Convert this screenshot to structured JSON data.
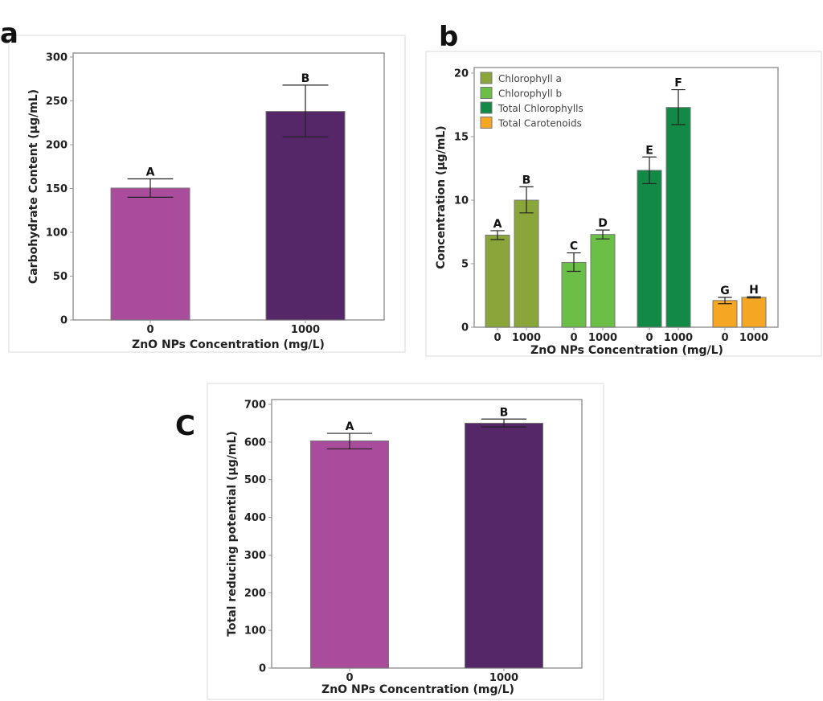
{
  "chart_data": [
    {
      "panel": "a",
      "type": "bar",
      "title": "",
      "xlabel": "ZnO NPs Concentration (mg/L)",
      "ylabel": "Carbohydrate Content (µg/mL)",
      "categories": [
        "0",
        "1000"
      ],
      "values": [
        150.5,
        238
      ],
      "error_low": [
        140,
        209
      ],
      "error_high": [
        161,
        268
      ],
      "significance_labels": [
        "A",
        "B"
      ],
      "bar_colors": [
        "#a94c9b",
        "#552668"
      ],
      "ylim": [
        0,
        300
      ],
      "yticks": [
        0,
        50,
        100,
        150,
        200,
        250,
        300
      ],
      "grid": false,
      "legend": null
    },
    {
      "panel": "b",
      "type": "bar",
      "title": "",
      "xlabel": "ZnO NPs Concentration (mg/L)",
      "ylabel": "Concentration (µg/mL)",
      "categories": [
        "0",
        "1000"
      ],
      "series": [
        {
          "name": "Chlorophyll a",
          "color": "#8aa63b",
          "values": [
            7.25,
            10.0
          ],
          "error_low": [
            6.9,
            9.0
          ],
          "error_high": [
            7.6,
            11.05
          ],
          "significance_labels": [
            "A",
            "B"
          ]
        },
        {
          "name": "Chlorophyll b",
          "color": "#6cbf46",
          "values": [
            5.1,
            7.3
          ],
          "error_low": [
            4.4,
            6.95
          ],
          "error_high": [
            5.85,
            7.65
          ],
          "significance_labels": [
            "C",
            "D"
          ]
        },
        {
          "name": "Total Chlorophylls",
          "color": "#128a46",
          "values": [
            12.35,
            17.3
          ],
          "error_low": [
            11.3,
            15.95
          ],
          "error_high": [
            13.4,
            18.7
          ],
          "significance_labels": [
            "E",
            "F"
          ]
        },
        {
          "name": "Total Carotenoids",
          "color": "#f5a623",
          "values": [
            2.1,
            2.35
          ],
          "error_low": [
            1.85,
            2.3
          ],
          "error_high": [
            2.35,
            2.4
          ],
          "significance_labels": [
            "G",
            "H"
          ]
        }
      ],
      "ylim": [
        0,
        20
      ],
      "yticks": [
        0,
        5,
        10,
        15,
        20
      ],
      "grid": false,
      "legend": "top-left"
    },
    {
      "panel": "C",
      "type": "bar",
      "title": "",
      "xlabel": "ZnO NPs Concentration (mg/L)",
      "ylabel": "Total reducing potential (µg/mL)",
      "categories": [
        "0",
        "1000"
      ],
      "values": [
        603,
        650
      ],
      "error_low": [
        582,
        640
      ],
      "error_high": [
        623,
        661
      ],
      "significance_labels": [
        "A",
        "B"
      ],
      "bar_colors": [
        "#a94c9b",
        "#552668"
      ],
      "ylim": [
        0,
        700
      ],
      "yticks": [
        0,
        100,
        200,
        300,
        400,
        500,
        600,
        700
      ],
      "grid": false,
      "legend": null
    }
  ]
}
